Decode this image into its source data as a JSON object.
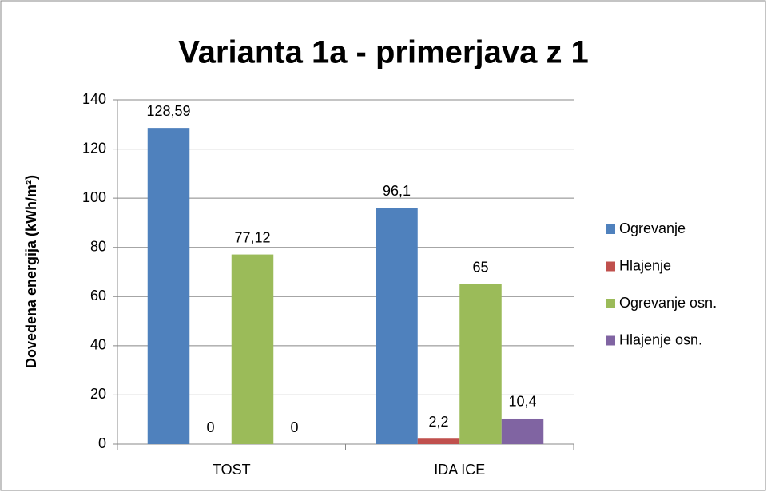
{
  "chart_data": {
    "type": "bar",
    "title": "Varianta 1a - primerjava z 1",
    "y_label": "Dovedena energija (kWh/m²)",
    "categories": [
      "TOST",
      "IDA ICE"
    ],
    "series": [
      {
        "name": "Ogrevanje",
        "color": "#4f81bd",
        "values": [
          128.59,
          96.1
        ],
        "value_labels": [
          "128,59",
          "96,1"
        ]
      },
      {
        "name": "Hlajenje",
        "color": "#c0504d",
        "values": [
          0,
          2.2
        ],
        "value_labels": [
          "0",
          "2,2"
        ]
      },
      {
        "name": "Ogrevanje osn.",
        "color": "#9bbb59",
        "values": [
          77.12,
          65
        ],
        "value_labels": [
          "77,12",
          "65"
        ]
      },
      {
        "name": "Hlajenje osn.",
        "color": "#8064a2",
        "values": [
          0,
          10.4
        ],
        "value_labels": [
          "0",
          "10,4"
        ]
      }
    ],
    "ylim": [
      0,
      140
    ],
    "yticks": [
      0,
      20,
      40,
      60,
      80,
      100,
      120,
      140
    ],
    "grid": true,
    "legend": "right"
  }
}
